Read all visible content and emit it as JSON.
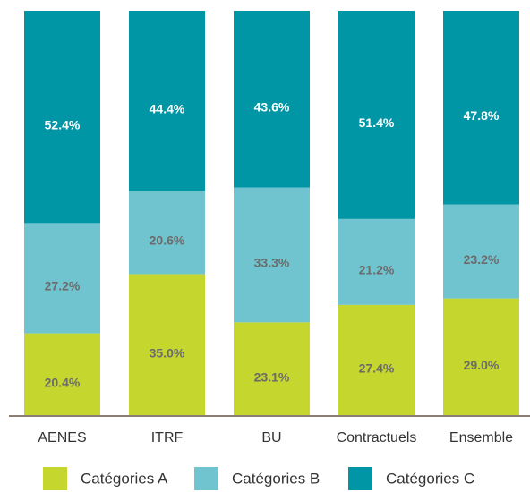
{
  "chart_data": {
    "type": "stacked_bar",
    "categories": [
      "AENES",
      "ITRF",
      "BU",
      "Contractuels",
      "Ensemble"
    ],
    "series": [
      {
        "name": "Catégories A",
        "color": "#c5d62e",
        "values": [
          20.4,
          35.0,
          23.1,
          27.4,
          29.0
        ],
        "value_labels": [
          "20.4%",
          "35.0%",
          "23.1%",
          "27.4%",
          "29.0%"
        ]
      },
      {
        "name": "Catégories B",
        "color": "#70c4cf",
        "values": [
          27.2,
          20.6,
          33.3,
          21.2,
          23.2
        ],
        "value_labels": [
          "27.2%",
          "20.6%",
          "33.3%",
          "21.2%",
          "23.2%"
        ]
      },
      {
        "name": "Catégories C",
        "color": "#0096a6",
        "values": [
          52.4,
          44.4,
          43.6,
          51.4,
          47.8
        ],
        "value_labels": [
          "52.4%",
          "44.4%",
          "43.6%",
          "51.4%",
          "47.8%"
        ]
      }
    ],
    "ylim": [
      0,
      100
    ],
    "legend": "bottom"
  }
}
